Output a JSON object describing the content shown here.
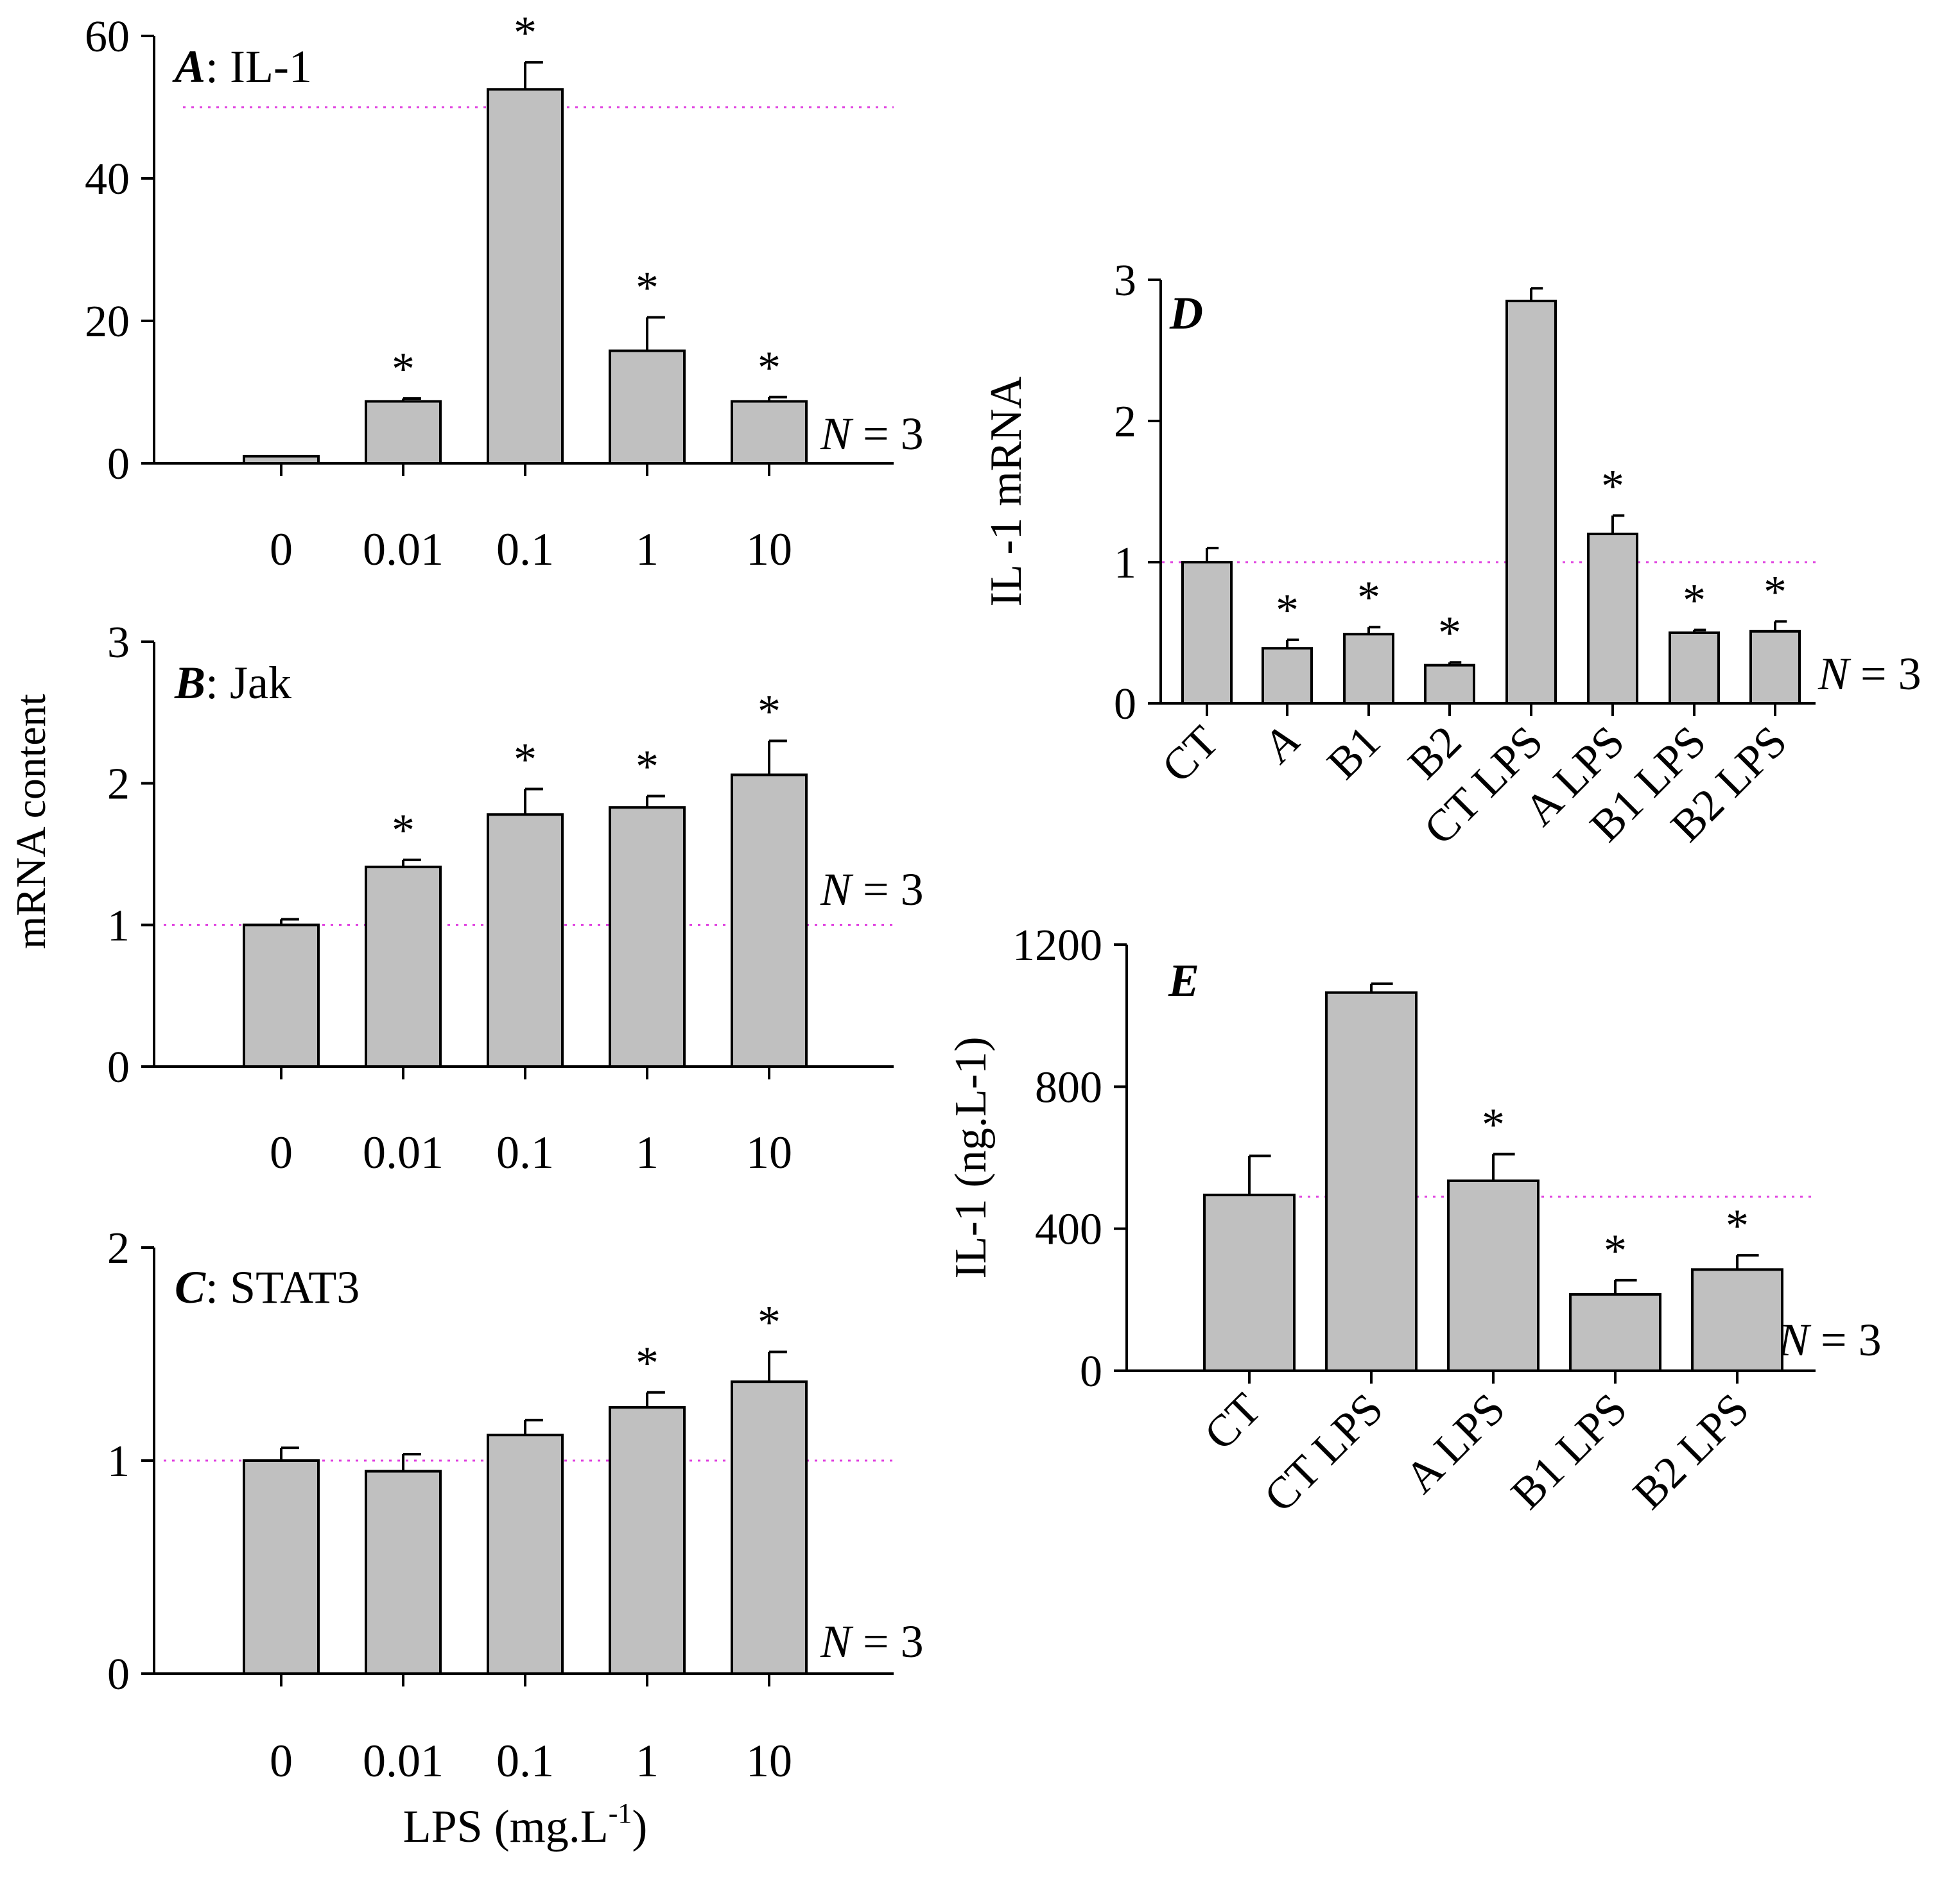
{
  "figure": {
    "colors": {
      "bar": "#c0c0c0",
      "reference_line": "#e040e0",
      "axis": "#000000"
    },
    "shared_y_label": "mRNA content",
    "shared_x_label": {
      "prefix": "LPS (mg.L",
      "superscript": "-1",
      "suffix": ")"
    }
  },
  "chart_data": [
    {
      "id": "A",
      "type": "bar",
      "title": {
        "letter": "A",
        "text": ": IL-1"
      },
      "categories": [
        "0",
        "0.01",
        "0.1",
        "1",
        "10"
      ],
      "values": [
        1,
        8.7,
        52.5,
        15.8,
        8.7
      ],
      "errors": [
        0,
        0.4,
        3.8,
        4.7,
        0.6
      ],
      "significant": [
        false,
        true,
        true,
        true,
        true
      ],
      "ylim": [
        0,
        60
      ],
      "yticks": [
        0,
        20,
        40,
        60
      ],
      "reference_line": 50,
      "n_label": {
        "italic": "N",
        "text": " = 3"
      }
    },
    {
      "id": "B",
      "type": "bar",
      "title": {
        "letter": "B",
        "text": ": Jak"
      },
      "categories": [
        "0",
        "0.01",
        "0.1",
        "1",
        "10"
      ],
      "values": [
        1,
        1.41,
        1.78,
        1.83,
        2.06
      ],
      "errors": [
        0.04,
        0.05,
        0.18,
        0.08,
        0.24
      ],
      "significant": [
        false,
        true,
        true,
        true,
        true
      ],
      "ylim": [
        0,
        3
      ],
      "yticks": [
        0,
        1,
        2,
        3
      ],
      "reference_line": 1,
      "n_label": {
        "italic": "N",
        "text": " = 3"
      }
    },
    {
      "id": "C",
      "type": "bar",
      "title": {
        "letter": "C",
        "text": ": STAT3"
      },
      "categories": [
        "0",
        "0.01",
        "0.1",
        "1",
        "10"
      ],
      "values": [
        1,
        0.95,
        1.12,
        1.25,
        1.37
      ],
      "errors": [
        0.06,
        0.08,
        0.07,
        0.07,
        0.14
      ],
      "significant": [
        false,
        false,
        false,
        true,
        true
      ],
      "ylim": [
        0,
        2
      ],
      "yticks": [
        0,
        1,
        2
      ],
      "reference_line": 1,
      "n_label": {
        "italic": "N",
        "text": " = 3"
      }
    },
    {
      "id": "D",
      "type": "bar",
      "title": {
        "letter": "D",
        "text": ""
      },
      "ylabel": "IL -1 mRNA",
      "categories": [
        "CT",
        "A",
        "B1",
        "B2",
        "CT LPS",
        "A LPS",
        "B1 LPS",
        "B2 LPS"
      ],
      "values": [
        1.0,
        0.39,
        0.49,
        0.27,
        2.85,
        1.2,
        0.5,
        0.51
      ],
      "errors": [
        0.1,
        0.06,
        0.05,
        0.02,
        0.09,
        0.13,
        0.02,
        0.07
      ],
      "significant": [
        false,
        true,
        true,
        true,
        false,
        true,
        true,
        true
      ],
      "ylim": [
        0,
        3
      ],
      "yticks": [
        0,
        1,
        2,
        3
      ],
      "reference_line": 1,
      "n_label": {
        "italic": "N",
        "text": " = 3"
      }
    },
    {
      "id": "E",
      "type": "bar",
      "title": {
        "letter": "E",
        "text": ""
      },
      "ylabel": "IL-1 (ng.L-1)",
      "categories": [
        "CT",
        "CT LPS",
        "A LPS",
        "B1 LPS",
        "B2 LPS"
      ],
      "values": [
        495,
        1065,
        535,
        215,
        285
      ],
      "errors": [
        110,
        25,
        75,
        40,
        40
      ],
      "significant": [
        false,
        false,
        true,
        true,
        true
      ],
      "ylim": [
        0,
        1200
      ],
      "yticks": [
        0,
        400,
        800,
        1200
      ],
      "reference_line": 490,
      "n_label": {
        "italic": "N",
        "text": " = 3"
      }
    }
  ]
}
